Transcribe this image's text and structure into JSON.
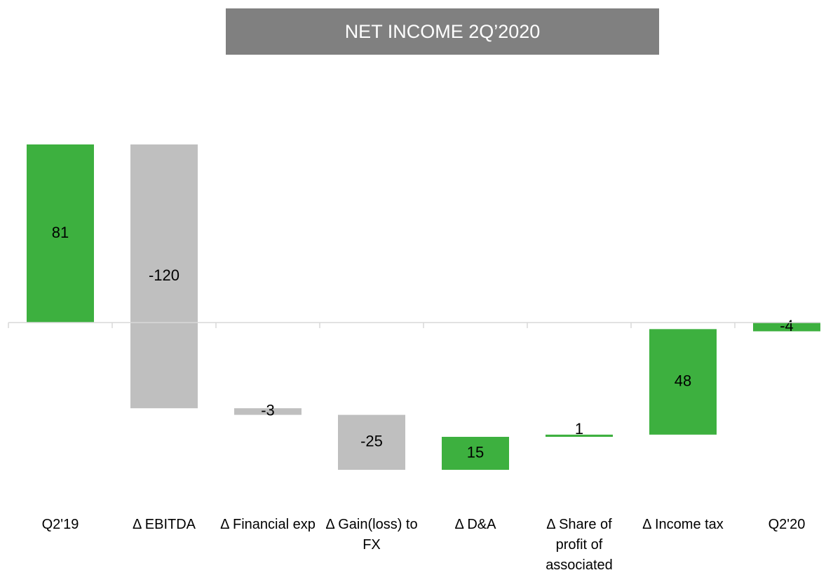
{
  "chart_data": {
    "type": "waterfall",
    "title": "NET INCOME 2Q’2020",
    "categories": [
      "Q2'19",
      "Δ EBITDA",
      "Δ Financial exp",
      "Δ Gain(loss) to FX",
      "Δ D&A",
      "Δ Share of profit of associated",
      "Δ Income tax",
      "Q2'20"
    ],
    "values": [
      81,
      -120,
      -3,
      -25,
      15,
      1,
      48,
      -4
    ],
    "colors": [
      "#3db03f",
      "#bfbfbf",
      "#bfbfbf",
      "#bfbfbf",
      "#3db03f",
      "#3db03f",
      "#3db03f",
      "#3db03f"
    ],
    "total_indices": [
      0,
      7
    ]
  }
}
